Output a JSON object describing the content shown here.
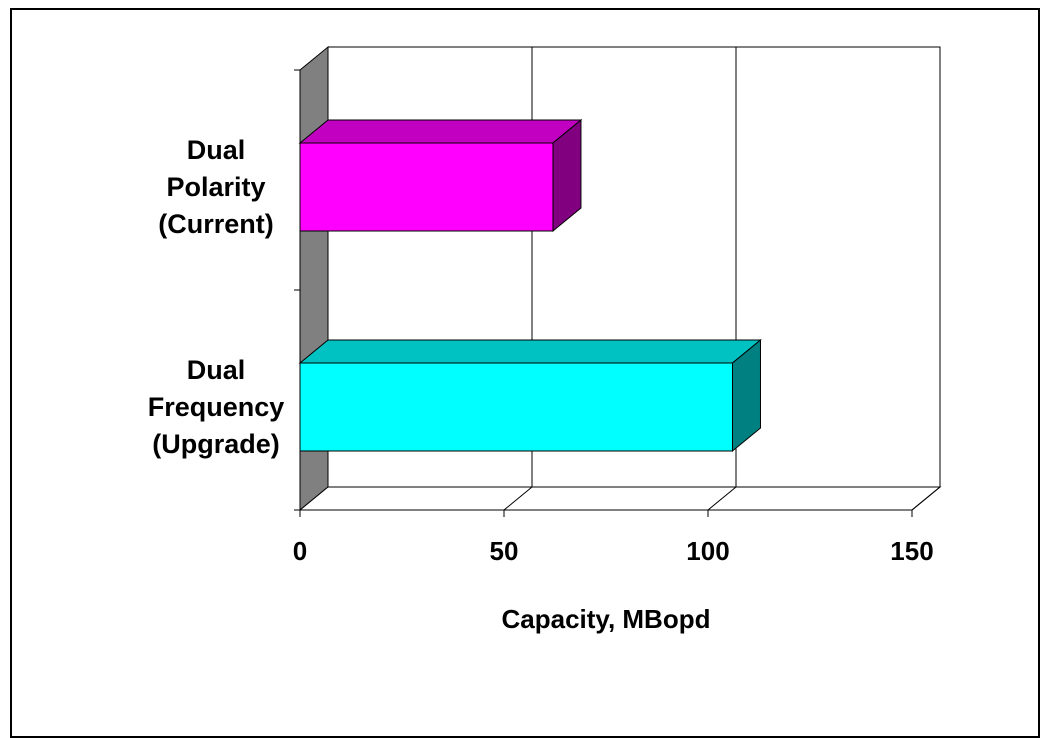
{
  "chart_data": {
    "type": "bar",
    "orientation": "horizontal",
    "three_d": true,
    "categories": [
      [
        "Dual",
        "Polarity",
        "(Current)"
      ],
      [
        "Dual",
        "Frequency",
        "(Upgrade)"
      ]
    ],
    "values": [
      62,
      106
    ],
    "colors": [
      "#FF00FF",
      "#00FFFF"
    ],
    "xlim": [
      0,
      150
    ],
    "xticks": [
      "0",
      "50",
      "100",
      "150"
    ],
    "xlabel": "Capacity, MBopd",
    "grid": "vertical",
    "legend": "none"
  }
}
